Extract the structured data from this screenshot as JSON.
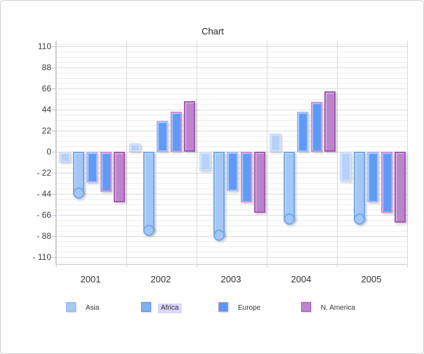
{
  "window": {
    "background": "#ffffff",
    "border_color": "#cfcfcf"
  },
  "chart_data": {
    "type": "bar",
    "title": "Chart",
    "xlabel": "",
    "ylabel": "",
    "categories": [
      "2001",
      "2002",
      "2003",
      "2004",
      "2005"
    ],
    "y_axis": {
      "min": -110,
      "max": 110,
      "major_step": 22,
      "minor_step": 5.5,
      "ticks": [
        110,
        88,
        66,
        44,
        22,
        0,
        -22,
        -44,
        -66,
        -88,
        -110
      ],
      "tick_labels": [
        "110",
        "88",
        "66",
        "44",
        "22",
        "0",
        "- 22",
        "- 44",
        "- 66",
        "- 88",
        "- 110"
      ]
    },
    "grid": {
      "horizontal_minor": true,
      "horizontal_major": true,
      "vertical_category_separators": true
    },
    "legend": {
      "position": "bottom",
      "items": [
        {
          "label": "Asia",
          "fill": "#a5c9f2",
          "border": "#8fbaef",
          "selected": false
        },
        {
          "label": "Africa",
          "fill": "#7fb0ee",
          "border": "#5a92e4",
          "selected": true
        },
        {
          "label": "Europe",
          "fill": "#5c97f2",
          "border": "#cc8fd8",
          "selected": false
        },
        {
          "label": "N. America",
          "fill": "#bd85cd",
          "border": "#a458b0",
          "selected": false
        }
      ]
    },
    "series": [
      {
        "name": "Asia",
        "in_legend": true,
        "shape": "flat",
        "fill": "#b7d1f8",
        "border": "#cfe0fb",
        "values": [
          -11,
          9,
          -20,
          19,
          -31
        ]
      },
      {
        "name": "Africa",
        "in_legend": true,
        "shape": "rounded-cap",
        "selected": true,
        "fill": "#a3c7f6",
        "border": "#76a9f0",
        "values": [
          -44,
          -83,
          -88,
          -71,
          -71
        ]
      },
      {
        "name": "",
        "in_legend": false,
        "shape": "flat",
        "fill": "#5d9bf7",
        "border": "#aabdf6",
        "values": [
          -32,
          32,
          -41,
          42,
          -53
        ]
      },
      {
        "name": "Europe",
        "in_legend": true,
        "shape": "flat",
        "fill": "#5d9bf7",
        "border": "#d18fd9",
        "values": [
          -42,
          42,
          -53,
          52,
          -64
        ]
      },
      {
        "name": "N. America",
        "in_legend": true,
        "shape": "flat",
        "fill": "#bc84cc",
        "border": "#a65ab3",
        "values": [
          -53,
          53,
          -64,
          63,
          -74
        ]
      }
    ]
  }
}
